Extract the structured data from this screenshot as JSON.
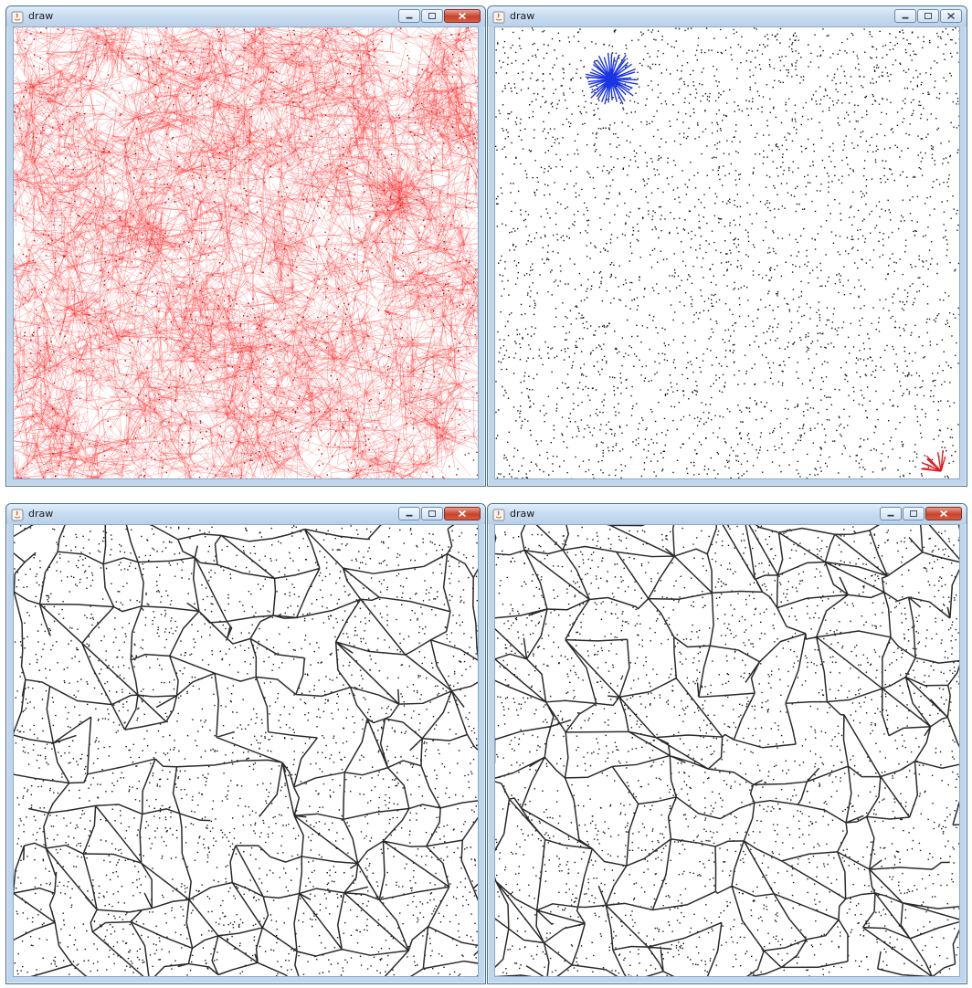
{
  "windows": [
    {
      "id": "w1",
      "title": "draw",
      "active": true
    },
    {
      "id": "w2",
      "title": "draw",
      "active": false
    },
    {
      "id": "w3",
      "title": "draw",
      "active": true
    },
    {
      "id": "w4",
      "title": "draw",
      "active": true
    }
  ],
  "colors": {
    "graph_edges": "#ff2020",
    "points": "#111111",
    "start_star": "#1a35e0",
    "end_star": "#e41b1b",
    "network_lines": "#2a2a2a"
  },
  "icons": [
    "java-icon",
    "minimize-icon",
    "maximize-icon",
    "close-icon"
  ]
}
